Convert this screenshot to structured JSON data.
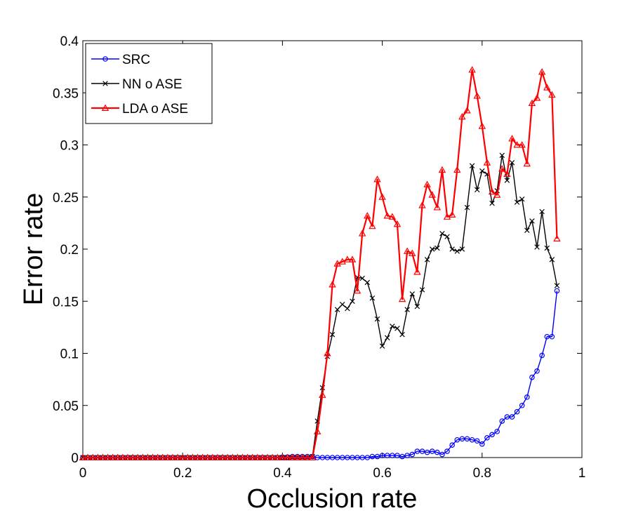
{
  "chart_data": {
    "type": "line",
    "title": "",
    "xlabel": "Occlusion rate",
    "ylabel": "Error rate",
    "xlim": [
      0,
      1
    ],
    "ylim": [
      0,
      0.4
    ],
    "xticks": [
      0,
      0.2,
      0.4,
      0.6,
      0.8,
      1
    ],
    "xtick_labels": [
      "0",
      "0.2",
      "0.4",
      "0.6",
      "0.8",
      "1"
    ],
    "yticks": [
      0,
      0.05,
      0.1,
      0.15,
      0.2,
      0.25,
      0.3,
      0.35,
      0.4
    ],
    "ytick_labels": [
      "0",
      "0.05",
      "0.1",
      "0.15",
      "0.2",
      "0.25",
      "0.3",
      "0.35",
      "0.4"
    ],
    "grid": false,
    "legend_position": "top-left",
    "x": [
      0,
      0.01,
      0.02,
      0.03,
      0.04,
      0.05,
      0.06,
      0.07,
      0.08,
      0.09,
      0.1,
      0.11,
      0.12,
      0.13,
      0.14,
      0.15,
      0.16,
      0.17,
      0.18,
      0.19,
      0.2,
      0.21,
      0.22,
      0.23,
      0.24,
      0.25,
      0.26,
      0.27,
      0.28,
      0.29,
      0.3,
      0.31,
      0.32,
      0.33,
      0.34,
      0.35,
      0.36,
      0.37,
      0.38,
      0.39,
      0.4,
      0.41,
      0.42,
      0.43,
      0.44,
      0.45,
      0.46,
      0.47,
      0.48,
      0.49,
      0.5,
      0.51,
      0.52,
      0.53,
      0.54,
      0.55,
      0.56,
      0.57,
      0.58,
      0.59,
      0.6,
      0.61,
      0.62,
      0.63,
      0.64,
      0.65,
      0.66,
      0.67,
      0.68,
      0.69,
      0.7,
      0.71,
      0.72,
      0.73,
      0.74,
      0.75,
      0.76,
      0.77,
      0.78,
      0.79,
      0.8,
      0.81,
      0.82,
      0.83,
      0.84,
      0.85,
      0.86,
      0.87,
      0.88,
      0.89,
      0.9,
      0.91,
      0.92,
      0.93,
      0.94,
      0.95
    ],
    "series": [
      {
        "name": "SRC",
        "color": "#0000ff",
        "marker": "circle",
        "values": [
          0,
          0,
          0,
          0,
          0,
          0,
          0,
          0,
          0,
          0,
          0,
          0,
          0,
          0,
          0,
          0,
          0,
          0,
          0,
          0,
          0,
          0,
          0,
          0,
          0,
          0,
          0,
          0,
          0,
          0,
          0,
          0,
          0,
          0,
          0,
          0,
          0,
          0,
          0,
          0,
          0.0005,
          0.0005,
          0.001,
          0.001,
          0.001,
          0.001,
          0.001,
          0,
          0,
          0,
          0,
          0,
          0,
          0,
          0,
          0,
          0,
          0,
          0.001,
          0.001,
          0.002,
          0.002,
          0.002,
          0.002,
          0.001,
          0.002,
          0.003,
          0.006,
          0.006,
          0.005,
          0.006,
          0.005,
          0.003,
          0.006,
          0.012,
          0.017,
          0.018,
          0.018,
          0.017,
          0.016,
          0.013,
          0.019,
          0.022,
          0.025,
          0.035,
          0.039,
          0.039,
          0.044,
          0.05,
          0.058,
          0.077,
          0.083,
          0.098,
          0.116,
          0.116,
          0.16
        ]
      },
      {
        "name": "NN o ASE",
        "color": "#000000",
        "marker": "x",
        "values": [
          0,
          0,
          0,
          0,
          0,
          0,
          0,
          0,
          0,
          0,
          0,
          0,
          0,
          0,
          0,
          0,
          0,
          0,
          0,
          0,
          0,
          0,
          0,
          0,
          0,
          0,
          0,
          0,
          0,
          0,
          0,
          0,
          0,
          0,
          0,
          0,
          0,
          0,
          0,
          0,
          0,
          0,
          0,
          0,
          0,
          0,
          0.001,
          0.035,
          0.067,
          0.097,
          0.118,
          0.142,
          0.147,
          0.143,
          0.15,
          0.173,
          0.172,
          0.168,
          0.153,
          0.133,
          0.107,
          0.115,
          0.126,
          0.124,
          0.118,
          0.142,
          0.157,
          0.145,
          0.161,
          0.19,
          0.2,
          0.201,
          0.215,
          0.212,
          0.2,
          0.198,
          0.2,
          0.24,
          0.28,
          0.257,
          0.275,
          0.272,
          0.244,
          0.256,
          0.29,
          0.266,
          0.283,
          0.245,
          0.248,
          0.218,
          0.227,
          0.202,
          0.236,
          0.201,
          0.19,
          0.165
        ]
      },
      {
        "name": "LDA o ASE",
        "color": "#ff0000",
        "marker": "triangle",
        "values": [
          0,
          0,
          0,
          0,
          0,
          0,
          0,
          0,
          0,
          0,
          0,
          0,
          0,
          0,
          0,
          0,
          0,
          0,
          0,
          0,
          0,
          0,
          0,
          0,
          0,
          0,
          0,
          0,
          0,
          0,
          0,
          0,
          0,
          0,
          0,
          0,
          0,
          0,
          0,
          0,
          0,
          0,
          0,
          0,
          0,
          0,
          0,
          0.025,
          0.06,
          0.1,
          0.166,
          0.186,
          0.188,
          0.19,
          0.19,
          0.16,
          0.215,
          0.232,
          0.222,
          0.267,
          0.25,
          0.232,
          0.231,
          0.224,
          0.152,
          0.198,
          0.196,
          0.178,
          0.242,
          0.262,
          0.252,
          0.24,
          0.276,
          0.231,
          0.233,
          0.276,
          0.327,
          0.333,
          0.372,
          0.347,
          0.318,
          0.283,
          0.255,
          0.252,
          0.277,
          0.272,
          0.306,
          0.3,
          0.3,
          0.282,
          0.34,
          0.345,
          0.37,
          0.355,
          0.348,
          0.21
        ]
      }
    ]
  }
}
